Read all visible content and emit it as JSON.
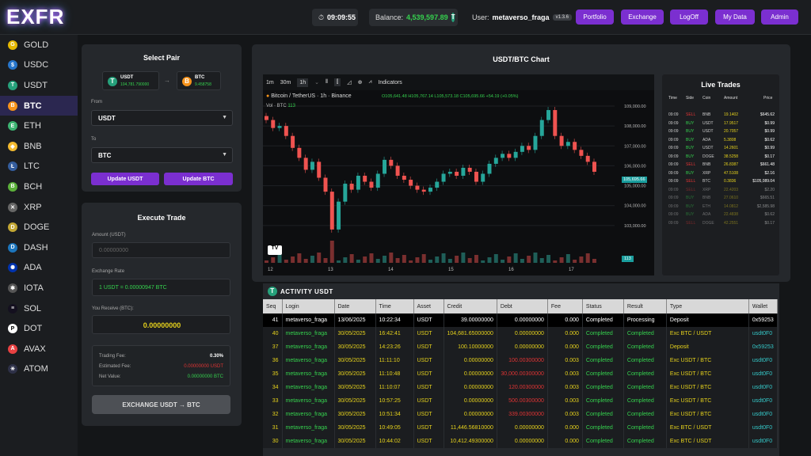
{
  "header": {
    "logo": "EXFR",
    "time": "09:09:55",
    "balance_label": "Balance:",
    "balance_value": "4,539,597.89",
    "user_label": "User:",
    "user_name": "metaverso_fraga",
    "version": "v1.3.6",
    "nav": [
      "Portfolio",
      "Exchange",
      "LogOff",
      "My Data",
      "Admin"
    ]
  },
  "sidebar": {
    "items": [
      {
        "label": "GOLD",
        "color": "#e6b800",
        "glyph": "G"
      },
      {
        "label": "USDC",
        "color": "#2775ca",
        "glyph": "$"
      },
      {
        "label": "USDT",
        "color": "#26a17b",
        "glyph": "T"
      },
      {
        "label": "BTC",
        "color": "#f7931a",
        "glyph": "B"
      },
      {
        "label": "ETH",
        "color": "#3cb371",
        "glyph": "E"
      },
      {
        "label": "BNB",
        "color": "#f3ba2f",
        "glyph": "◆"
      },
      {
        "label": "LTC",
        "color": "#345d9d",
        "glyph": "Ł"
      },
      {
        "label": "BCH",
        "color": "#5bb03a",
        "glyph": "B"
      },
      {
        "label": "XRP",
        "color": "#666666",
        "glyph": "✕"
      },
      {
        "label": "DOGE",
        "color": "#c2a633",
        "glyph": "D"
      },
      {
        "label": "DASH",
        "color": "#1c75bc",
        "glyph": "D"
      },
      {
        "label": "ADA",
        "color": "#0033ad",
        "glyph": "✺"
      },
      {
        "label": "IOTA",
        "color": "#555555",
        "glyph": "✱"
      },
      {
        "label": "SOL",
        "color": "#14101f",
        "glyph": "≡"
      },
      {
        "label": "DOT",
        "color": "#ffffff",
        "glyph": "P"
      },
      {
        "label": "AVAX",
        "color": "#e84142",
        "glyph": "A"
      },
      {
        "label": "ATOM",
        "color": "#2e3148",
        "glyph": "✳"
      }
    ],
    "active": "BTC"
  },
  "select_pair": {
    "title": "Select Pair",
    "from_coin": "USDT",
    "from_balance": "104,781.790000",
    "to_coin": "BTC",
    "to_balance": "9.458758",
    "from_label": "From",
    "from_value": "USDT",
    "to_label": "To",
    "to_value": "BTC",
    "btn_update_usdt": "Update USDT",
    "btn_update_btc": "Update BTC"
  },
  "execute_trade": {
    "title": "Execute Trade",
    "amount_label": "Amount (USDT)",
    "amount_placeholder": "0.00000000",
    "rate_label": "Exchange Rate",
    "rate_value": "1 USDT = 0.00000947 BTC",
    "receive_label": "You Receive (BTC):",
    "receive_value": "0.00000000",
    "trading_fee_label": "Trading Fee:",
    "trading_fee_value": "0.30%",
    "est_fee_label": "Estimated Fee:",
    "est_fee_value": "0.00000000 USDT",
    "net_label": "Net Value:",
    "net_value": "0.00000000 BTC",
    "exchange_btn": "EXCHANGE USDT → BTC"
  },
  "chart_panel": {
    "title": "USDT/BTC Chart",
    "intervals": [
      "1m",
      "30m",
      "1h"
    ],
    "indicators": "Indicators",
    "symbol": "Bitcoin / TetherUS · 1h · Binance",
    "ohlc": "O105,641.48 H105,767.14 L105,573.18 C105,695.66 +54.19 (+0.05%)",
    "vol_label": "Vol · BTC",
    "vol_value": "113",
    "price_tag": "105,695.66",
    "vol_tag": "113"
  },
  "chart_data": {
    "type": "line",
    "title": "Bitcoin / TetherUS · 1h · Binance",
    "ylim": [
      102000,
      109000
    ],
    "y_ticks": [
      "109,000.00",
      "108,000.00",
      "107,000.00",
      "106,000.00",
      "105,000.00",
      "104,000.00",
      "103,000.00"
    ],
    "x_ticks": [
      "12",
      "13",
      "14",
      "15",
      "16",
      "17"
    ],
    "series": [
      {
        "values": [
          108300,
          107900,
          108000,
          107500,
          106900,
          106400,
          105800,
          106200,
          105400,
          104700,
          102800,
          104200,
          105100,
          104800,
          105500,
          105200,
          104900,
          105600,
          106300,
          106000,
          105500,
          105300,
          105000,
          104800,
          104700,
          104900,
          105200,
          105600,
          105700,
          105500,
          105900,
          105700,
          105200,
          105600,
          106100,
          106400,
          106600,
          106400,
          106700,
          107000,
          106800,
          107500,
          108300,
          108800,
          107500,
          107000,
          107200,
          106800,
          106500,
          106200,
          105700
        ]
      }
    ]
  },
  "live_trades": {
    "title": "Live Trades",
    "headers": [
      "Time",
      "Side",
      "Coin",
      "Amount",
      "Price"
    ],
    "rows": [
      [
        "09:09",
        "SELL",
        "BNB",
        "19.1402",
        "$645.62"
      ],
      [
        "09:09",
        "BUY",
        "USDT",
        "17.9517",
        "$0.99"
      ],
      [
        "09:09",
        "BUY",
        "USDT",
        "20.7057",
        "$0.99"
      ],
      [
        "09:09",
        "BUY",
        "ADA",
        "5.3808",
        "$0.62"
      ],
      [
        "09:09",
        "BUY",
        "USDT",
        "14.2601",
        "$0.99"
      ],
      [
        "09:09",
        "BUY",
        "DOGE",
        "38.5258",
        "$0.17"
      ],
      [
        "09:09",
        "SELL",
        "BNB",
        "26.8387",
        "$661.48"
      ],
      [
        "09:09",
        "BUY",
        "XRP",
        "47.5108",
        "$2.16"
      ],
      [
        "09:09",
        "SELL",
        "BTC",
        "0.3836",
        "$105,089.04"
      ],
      [
        "09:09",
        "SELL",
        "XRP",
        "22.4203",
        "$2.20"
      ],
      [
        "09:09",
        "BUY",
        "BNB",
        "27.0610",
        "$665.51"
      ],
      [
        "09:09",
        "BUY",
        "ETH",
        "14.0812",
        "$2,585.98"
      ],
      [
        "09:09",
        "BUY",
        "ADA",
        "22.4838",
        "$0.62"
      ],
      [
        "09:09",
        "SELL",
        "DOGE",
        "42.2551",
        "$0.17"
      ]
    ]
  },
  "activity": {
    "title": "ACTIVITY USDT",
    "headers": [
      "Seq",
      "Login",
      "Date",
      "Time",
      "Asset",
      "Credit",
      "Debt",
      "Fee",
      "Status",
      "Result",
      "Type",
      "Wallet"
    ],
    "rows": [
      [
        "41",
        "metaverso_fraga",
        "13/06/2025",
        "10:22:34",
        "USDT",
        "39.00000000",
        "0.00000000",
        "0.000",
        "Completed",
        "Processing",
        "Deposit",
        "0x59253"
      ],
      [
        "40",
        "metaverso_fraga",
        "30/05/2025",
        "16:42:41",
        "USDT",
        "104,681.65000000",
        "0.00000000",
        "0.000",
        "Completed",
        "Completed",
        "Exc BTC / USDT",
        "usdt0F0"
      ],
      [
        "37",
        "metaverso_fraga",
        "30/05/2025",
        "14:23:26",
        "USDT",
        "100.10000000",
        "0.00000000",
        "0.000",
        "Completed",
        "Completed",
        "Deposit",
        "0x59253"
      ],
      [
        "36",
        "metaverso_fraga",
        "30/05/2025",
        "11:11:10",
        "USDT",
        "0.00000000",
        "100.00300000",
        "0.003",
        "Completed",
        "Completed",
        "Exc USDT / BTC",
        "usdt0F0"
      ],
      [
        "35",
        "metaverso_fraga",
        "30/05/2025",
        "11:10:48",
        "USDT",
        "0.00000000",
        "30,000.00300000",
        "0.003",
        "Completed",
        "Completed",
        "Exc USDT / BTC",
        "usdt0F0"
      ],
      [
        "34",
        "metaverso_fraga",
        "30/05/2025",
        "11:10:07",
        "USDT",
        "0.00000000",
        "120.00300000",
        "0.003",
        "Completed",
        "Completed",
        "Exc USDT / BTC",
        "usdt0F0"
      ],
      [
        "33",
        "metaverso_fraga",
        "30/05/2025",
        "10:57:25",
        "USDT",
        "0.00000000",
        "500.00300000",
        "0.003",
        "Completed",
        "Completed",
        "Exc USDT / BTC",
        "usdt0F0"
      ],
      [
        "32",
        "metaverso_fraga",
        "30/05/2025",
        "10:51:34",
        "USDT",
        "0.00000000",
        "339.00300000",
        "0.003",
        "Completed",
        "Completed",
        "Exc USDT / BTC",
        "usdt0F0"
      ],
      [
        "31",
        "metaverso_fraga",
        "30/05/2025",
        "10:49:05",
        "USDT",
        "11,446.56810000",
        "0.00000000",
        "0.000",
        "Completed",
        "Completed",
        "Exc BTC / USDT",
        "usdt0F0"
      ],
      [
        "30",
        "metaverso_fraga",
        "30/05/2025",
        "10:44:02",
        "USDT",
        "10,412.49300000",
        "0.00000000",
        "0.000",
        "Completed",
        "Completed",
        "Exc BTC / USDT",
        "usdt0F0"
      ]
    ]
  },
  "colors": {
    "accent": "#7b2fd0",
    "buy": "#35d14e",
    "sell": "#e03434",
    "credit": "#e6d21c"
  }
}
